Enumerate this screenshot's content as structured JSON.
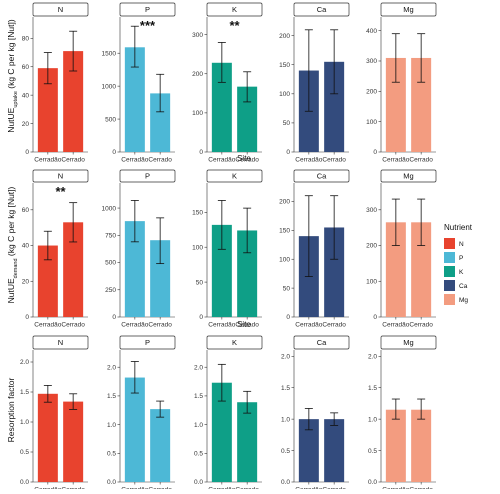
{
  "colors": {
    "N": "#E8432E",
    "P": "#4DB8D6",
    "K": "#0E9F87",
    "Ca": "#334B7D",
    "Mg": "#F39C80"
  },
  "legend": {
    "title": "Nutrient",
    "items": [
      "N",
      "P",
      "K",
      "Ca",
      "Mg"
    ]
  },
  "chart_data": [
    {
      "type": "bar",
      "ylabel": "NutUE",
      "ylabel_sub": "uptake",
      "ylabel_rest": " (kg C per kg [Nut])",
      "xlabel": "Site",
      "panels": [
        {
          "nutrient": "N",
          "categories": [
            "Cerradão",
            "Cerrado"
          ],
          "values": [
            59,
            71
          ],
          "err_low": [
            48,
            57
          ],
          "err_high": [
            70,
            85
          ],
          "ylim": [
            0,
            95
          ],
          "yticks": [
            "0",
            "20",
            "40",
            "60",
            "80"
          ],
          "ytick_vals": [
            0,
            20,
            40,
            60,
            80
          ],
          "sig": ""
        },
        {
          "nutrient": "P",
          "categories": [
            "Cerradão",
            "Cerrado"
          ],
          "values": [
            1590,
            890
          ],
          "err_low": [
            1290,
            610
          ],
          "err_high": [
            1910,
            1180
          ],
          "ylim": [
            0,
            2050
          ],
          "yticks": [
            "0",
            "500",
            "1000",
            "1500"
          ],
          "ytick_vals": [
            0,
            500,
            1000,
            1500
          ],
          "sig": "***"
        },
        {
          "nutrient": "K",
          "categories": [
            "Cerradão",
            "Cerrado"
          ],
          "values": [
            228,
            167
          ],
          "err_low": [
            178,
            128
          ],
          "err_high": [
            280,
            205
          ],
          "ylim": [
            0,
            345
          ],
          "yticks": [
            "0",
            "100",
            "200",
            "300"
          ],
          "ytick_vals": [
            0,
            100,
            200,
            300
          ],
          "sig": "**"
        },
        {
          "nutrient": "Ca",
          "categories": [
            "Cerradão",
            "Cerrado"
          ],
          "values": [
            140,
            155
          ],
          "err_low": [
            70,
            100
          ],
          "err_high": [
            210,
            210
          ],
          "ylim": [
            0,
            232
          ],
          "yticks": [
            "0",
            "50",
            "100",
            "150",
            "200"
          ],
          "ytick_vals": [
            0,
            50,
            100,
            150,
            200
          ],
          "sig": ""
        },
        {
          "nutrient": "Mg",
          "categories": [
            "Cerradão",
            "Cerrado"
          ],
          "values": [
            310,
            310
          ],
          "err_low": [
            230,
            230
          ],
          "err_high": [
            390,
            390
          ],
          "ylim": [
            0,
            445
          ],
          "yticks": [
            "0",
            "100",
            "200",
            "300",
            "400"
          ],
          "ytick_vals": [
            0,
            100,
            200,
            300,
            400
          ],
          "sig": ""
        }
      ]
    },
    {
      "type": "bar",
      "ylabel": "NutUE",
      "ylabel_sub": "demand",
      "ylabel_rest": " (kg C per kg [Nut])",
      "xlabel": "Site",
      "panels": [
        {
          "nutrient": "N",
          "categories": [
            "Cerradão",
            "Cerrado"
          ],
          "values": [
            40,
            53
          ],
          "err_low": [
            32,
            42
          ],
          "err_high": [
            48,
            64
          ],
          "ylim": [
            0,
            75
          ],
          "yticks": [
            "0",
            "20",
            "40",
            "60"
          ],
          "ytick_vals": [
            0,
            20,
            40,
            60
          ],
          "sig": "**"
        },
        {
          "nutrient": "P",
          "categories": [
            "Cerradão",
            "Cerrado"
          ],
          "values": [
            880,
            705
          ],
          "err_low": [
            690,
            490
          ],
          "err_high": [
            1070,
            910
          ],
          "ylim": [
            0,
            1230
          ],
          "yticks": [
            "0",
            "250",
            "500",
            "750",
            "1000"
          ],
          "ytick_vals": [
            0,
            250,
            500,
            750,
            1000
          ],
          "sig": ""
        },
        {
          "nutrient": "K",
          "categories": [
            "Cerradão",
            "Cerrado"
          ],
          "values": [
            132,
            124
          ],
          "err_low": [
            97,
            92
          ],
          "err_high": [
            167,
            156
          ],
          "ylim": [
            0,
            192
          ],
          "yticks": [
            "0",
            "50",
            "100",
            "150"
          ],
          "ytick_vals": [
            0,
            50,
            100,
            150
          ],
          "sig": ""
        },
        {
          "nutrient": "Ca",
          "categories": [
            "Cerradão",
            "Cerrado"
          ],
          "values": [
            140,
            155
          ],
          "err_low": [
            70,
            100
          ],
          "err_high": [
            210,
            210
          ],
          "ylim": [
            0,
            232
          ],
          "yticks": [
            "0",
            "50",
            "100",
            "150",
            "200"
          ],
          "ytick_vals": [
            0,
            50,
            100,
            150,
            200
          ],
          "sig": ""
        },
        {
          "nutrient": "Mg",
          "categories": [
            "Cerradão",
            "Cerrado"
          ],
          "values": [
            265,
            265
          ],
          "err_low": [
            200,
            200
          ],
          "err_high": [
            330,
            330
          ],
          "ylim": [
            0,
            375
          ],
          "yticks": [
            "0",
            "100",
            "200",
            "300"
          ],
          "ytick_vals": [
            0,
            100,
            200,
            300
          ],
          "sig": ""
        }
      ]
    },
    {
      "type": "bar",
      "ylabel": "Resorption factor",
      "ylabel_sub": "",
      "ylabel_rest": "",
      "xlabel": "",
      "panels": [
        {
          "nutrient": "N",
          "categories": [
            "Cerradão",
            "Cerrado"
          ],
          "values": [
            1.47,
            1.34
          ],
          "err_low": [
            1.33,
            1.21
          ],
          "err_high": [
            1.61,
            1.47
          ],
          "ylim": [
            0,
            2.2
          ],
          "yticks": [
            "0.0",
            "0.5",
            "1.0",
            "1.5",
            "2.0"
          ],
          "ytick_vals": [
            0,
            0.5,
            1,
            1.5,
            2
          ],
          "sig": ""
        },
        {
          "nutrient": "P",
          "categories": [
            "Cerradão",
            "Cerrado"
          ],
          "values": [
            1.82,
            1.27
          ],
          "err_low": [
            1.55,
            1.13
          ],
          "err_high": [
            2.1,
            1.41
          ],
          "ylim": [
            0,
            2.3
          ],
          "yticks": [
            "0.0",
            "0.5",
            "1.0",
            "1.5",
            "2.0"
          ],
          "ytick_vals": [
            0,
            0.5,
            1,
            1.5,
            2
          ],
          "sig": ""
        },
        {
          "nutrient": "K",
          "categories": [
            "Cerradão",
            "Cerrado"
          ],
          "values": [
            1.73,
            1.39
          ],
          "err_low": [
            1.41,
            1.2
          ],
          "err_high": [
            2.05,
            1.58
          ],
          "ylim": [
            0,
            2.3
          ],
          "yticks": [
            "0.0",
            "0.5",
            "1.0",
            "1.5",
            "2.0"
          ],
          "ytick_vals": [
            0,
            0.5,
            1,
            1.5,
            2
          ],
          "sig": ""
        },
        {
          "nutrient": "Ca",
          "categories": [
            "Cerradão",
            "Cerrado"
          ],
          "values": [
            1.0,
            1.0
          ],
          "err_low": [
            0.83,
            0.9
          ],
          "err_high": [
            1.17,
            1.1
          ],
          "ylim": [
            0,
            2.1
          ],
          "yticks": [
            "0.0",
            "0.5",
            "1.0",
            "1.5",
            "2.0"
          ],
          "ytick_vals": [
            0,
            0.5,
            1,
            1.5,
            2
          ],
          "sig": ""
        },
        {
          "nutrient": "Mg",
          "categories": [
            "Cerradão",
            "Cerrado"
          ],
          "values": [
            1.15,
            1.15
          ],
          "err_low": [
            1.0,
            1.0
          ],
          "err_high": [
            1.32,
            1.32
          ],
          "ylim": [
            0,
            2.1
          ],
          "yticks": [
            "0.0",
            "0.5",
            "1.0",
            "1.5",
            "2.0"
          ],
          "ytick_vals": [
            0,
            0.5,
            1,
            1.5,
            2
          ],
          "sig": ""
        }
      ]
    }
  ]
}
